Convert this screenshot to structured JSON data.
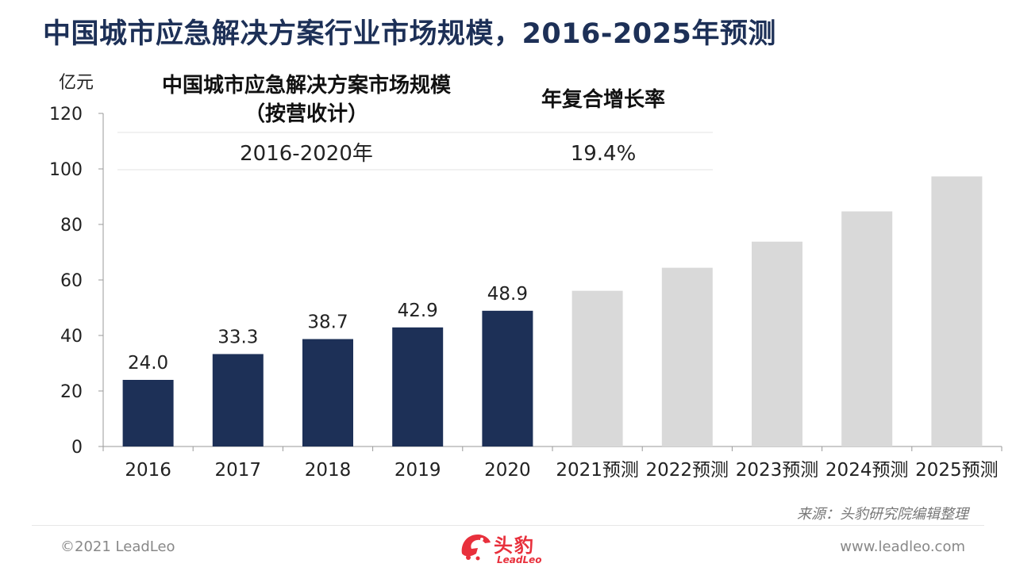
{
  "title": "中国城市应急解决方案行业市场规模，2016-2025年预测",
  "colors": {
    "actual": "#1d3057",
    "forecast": "#d9d9d9",
    "title": "#1d3057",
    "brand": "#e8303c"
  },
  "chart_data": {
    "type": "bar",
    "unit_label": "亿元",
    "categories": [
      "2016",
      "2017",
      "2018",
      "2019",
      "2020",
      "2021预测",
      "2022预测",
      "2023预测",
      "2024预测",
      "2025预测"
    ],
    "series": [
      {
        "values": [
          24.0,
          33.3,
          38.7,
          42.9,
          48.9,
          56.1,
          64.4,
          73.8,
          84.7,
          97.3
        ],
        "labels": [
          "24.0",
          "33.3",
          "38.7",
          "42.9",
          "48.9",
          "",
          "",
          "",
          "",
          ""
        ],
        "kind": [
          "actual",
          "actual",
          "actual",
          "actual",
          "actual",
          "forecast",
          "forecast",
          "forecast",
          "forecast",
          "forecast"
        ]
      }
    ],
    "ylim": [
      0,
      120
    ],
    "yticks": [
      0,
      20,
      40,
      60,
      80,
      100,
      120
    ],
    "grid": false,
    "legend": "none"
  },
  "table": {
    "col1_header_line1": "中国城市应急解决方案市场规模",
    "col1_header_line2": "（按营收计）",
    "col2_header": "年复合增长率",
    "period": "2016-2020年",
    "cagr": "19.4%"
  },
  "source": "来源：头豹研究院编辑整理",
  "footer": {
    "copyright": "©2021 LeadLeo",
    "website": "www.leadleo.com"
  },
  "logo": {
    "cn": "头豹",
    "en": "LeadLeo"
  }
}
